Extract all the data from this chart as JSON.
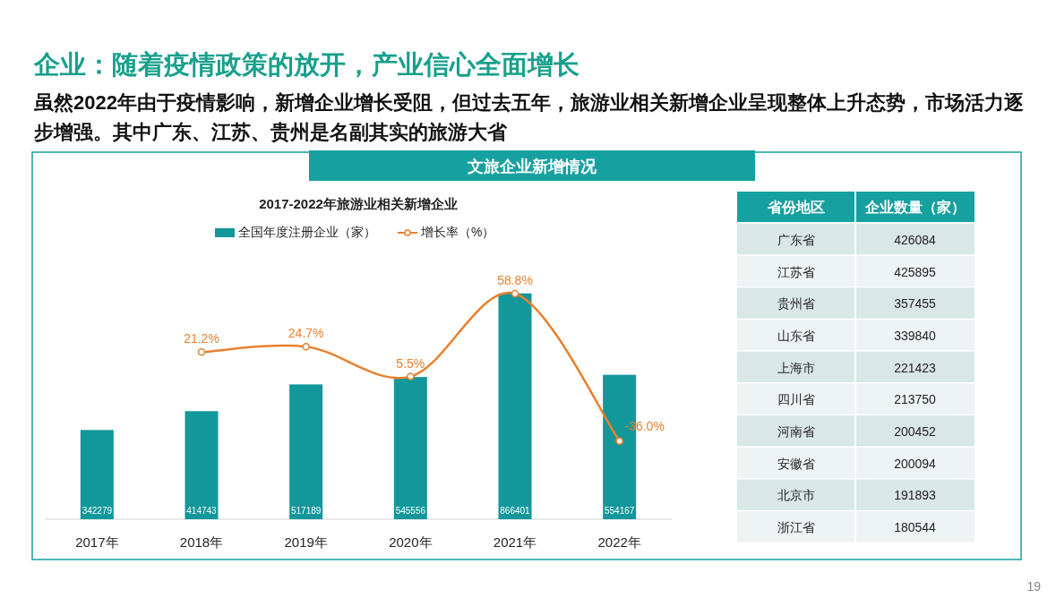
{
  "chart_data": [
    {
      "type": "bar",
      "title": "2017-2022年旅游业相关新增企业",
      "categories": [
        "2017年",
        "2018年",
        "2019年",
        "2020年",
        "2021年",
        "2022年"
      ],
      "series": [
        {
          "name": "全国年度注册企业（家）",
          "type": "bar",
          "color": "#12979a",
          "values": [
            342279,
            414743,
            517189,
            545556,
            866401,
            554167
          ]
        },
        {
          "name": "增长率（%）",
          "type": "line",
          "axis": "y2",
          "color": "#e8812f",
          "marker": "circle",
          "values": [
            null,
            21.2,
            24.7,
            5.5,
            58.8,
            -36.0
          ],
          "value_labels": [
            null,
            "21.2%",
            "24.7%",
            "5.5%",
            "58.8%",
            "-36.0%"
          ]
        }
      ],
      "data_labels": true,
      "legend": "top",
      "tick_labels": "x",
      "annotations": [
        "企业：随着疫情政策的放开，产业信心全面增长",
        "虽然2022年由于疫情影响，新增企业增长受阻，但过去五年，旅游业相关新增企业呈现整体上升态势，市场活力逐步增强。其中广东、江苏、贵州是名副其实的旅游大省",
        "文旅企业新增情况",
        "19"
      ]
    },
    {
      "type": "other",
      "xlabel": "省份地区",
      "ylabel": "企业数量（家）",
      "categories": [
        "广东省",
        "江苏省",
        "贵州省",
        "山东省",
        "上海市",
        "四川省",
        "河南省",
        "安徽省",
        "北京市",
        "浙江省"
      ],
      "values": [
        426084,
        425895,
        357455,
        339840,
        221423,
        213750,
        200452,
        200094,
        191893,
        180544
      ],
      "data_labels": true
    }
  ]
}
